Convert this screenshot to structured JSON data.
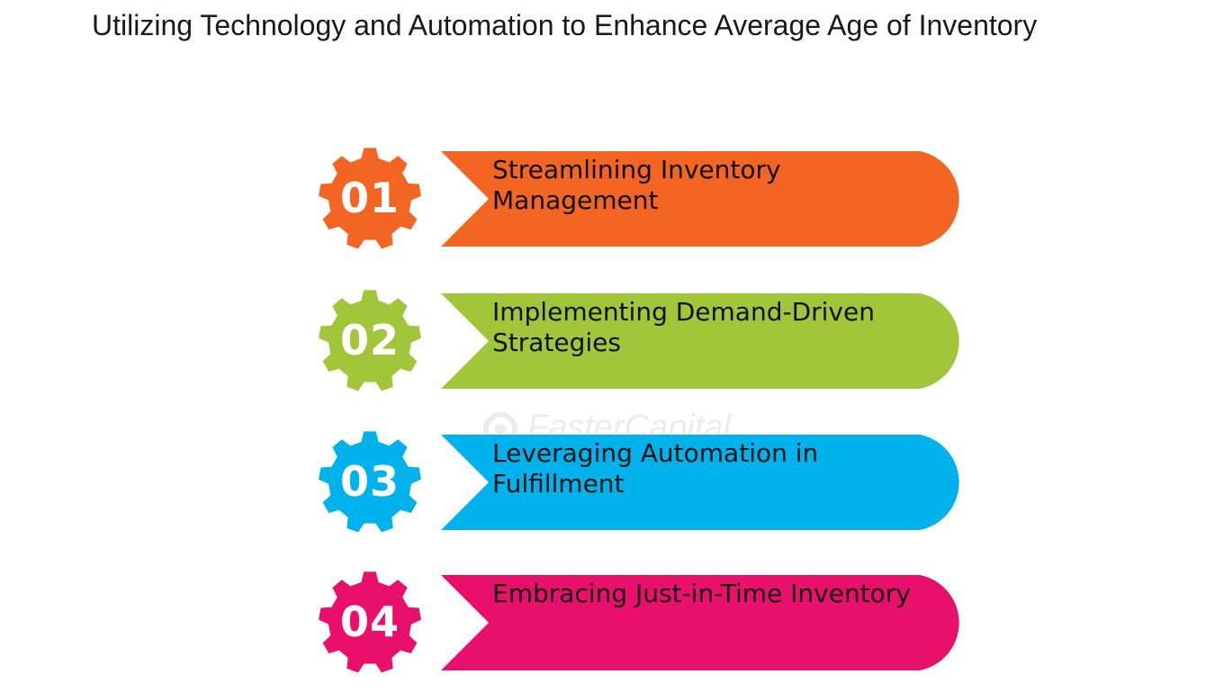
{
  "title": "Utilizing Technology and Automation to Enhance Average Age of Inventory",
  "watermark": "FasterCapital",
  "steps": [
    {
      "number": "01",
      "label": "Streamlining Inventory Management",
      "color": "#F26522"
    },
    {
      "number": "02",
      "label": "Implementing Demand-Driven Strategies",
      "color": "#A1C63A"
    },
    {
      "number": "03",
      "label": "Leveraging Automation in Fulfillment",
      "color": "#00B2EB"
    },
    {
      "number": "04",
      "label": "Embracing Just-in-Time Inventory",
      "color": "#E8106B"
    }
  ]
}
